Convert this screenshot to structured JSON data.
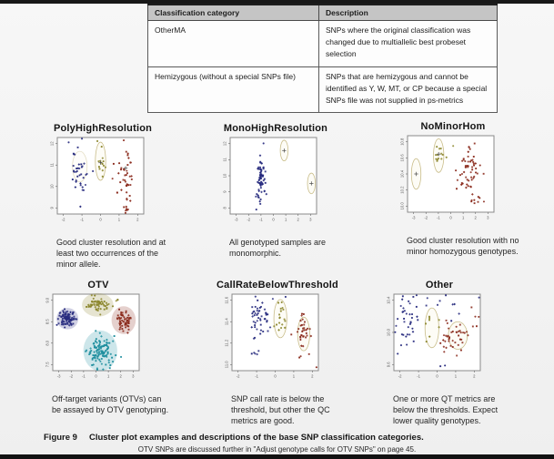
{
  "page": {
    "figure_label": "Figure 9",
    "figure_caption": "Cluster plot examples and descriptions of the base SNP classification categories.",
    "footnote": "OTV SNPs are discussed further in \"Adjust genotype calls for OTV SNPs\" on page 45."
  },
  "table": {
    "headers": [
      "Classification category",
      "Description"
    ],
    "rows": [
      [
        "OtherMA",
        "SNPs where the original classification was changed due to multiallelic best probeset selection"
      ],
      [
        "Hemizygous (without a special SNPs file)",
        "SNPs that are hemizygous and cannot be identified as Y, W, MT, or CP because a special SNPs file was not supplied in ps-metrics"
      ]
    ]
  },
  "colors": {
    "blue": "#272b7e",
    "olive": "#8b862c",
    "red": "#8a2a1c",
    "teal": "#1d8e9e",
    "ellipse": "#c9bd8a",
    "cross": "#4a4a4a",
    "plot_border": "#8a8a8a",
    "tick_text": "#555555"
  },
  "chart_data": [
    {
      "type": "scatter",
      "title": "PolyHighResolution",
      "caption": "Good cluster resolution and at least two occurrences of the minor allele.",
      "x_ticks": [
        "-2",
        "-1",
        "0",
        "1",
        "2"
      ],
      "y_ticks": [
        "12",
        "11",
        "10",
        "9"
      ],
      "clusters": [
        {
          "color": "blue",
          "cx": 0.26,
          "cy": 0.45,
          "sx": 0.055,
          "sy": 0.15,
          "n": 36
        },
        {
          "color": "blue",
          "cx": 0.14,
          "cy": 0.06,
          "sx": 0.01,
          "sy": 0.01,
          "n": 1
        },
        {
          "color": "olive",
          "cx": 0.5,
          "cy": 0.34,
          "sx": 0.028,
          "sy": 0.1,
          "n": 13
        },
        {
          "color": "olive",
          "cx": 0.46,
          "cy": 0.04,
          "sx": 0.008,
          "sy": 0.008,
          "n": 1
        },
        {
          "color": "red",
          "cx": 0.78,
          "cy": 0.52,
          "sx": 0.05,
          "sy": 0.19,
          "n": 46
        },
        {
          "color": "red",
          "cx": 0.8,
          "cy": 0.94,
          "sx": 0.02,
          "sy": 0.015,
          "n": 2
        }
      ],
      "ellipses": [
        {
          "cx": 0.5,
          "cy": 0.31,
          "rx": 0.06,
          "ry": 0.25
        },
        {
          "cx": 0.26,
          "cy": 0.38,
          "rx": 0.085,
          "ry": 0.2,
          "o": 0.5
        }
      ],
      "crosses": [
        {
          "cx": 0.5,
          "cy": 0.33
        },
        {
          "cx": 0.79,
          "cy": 0.4
        }
      ]
    },
    {
      "type": "scatter",
      "title": "MonoHighResolution",
      "caption": "All genotyped samples are monomorphic.",
      "x_ticks": [
        "-3",
        "-2",
        "-1",
        "0",
        "1",
        "2",
        "3"
      ],
      "y_ticks": [
        "12",
        "11",
        "10",
        "9",
        "8"
      ],
      "clusters": [
        {
          "color": "blue",
          "cx": 0.355,
          "cy": 0.55,
          "sx": 0.024,
          "sy": 0.14,
          "n": 72
        },
        {
          "color": "blue",
          "cx": 0.3,
          "cy": 0.945,
          "sx": 0.005,
          "sy": 0.005,
          "n": 1
        }
      ],
      "ellipses": [
        {
          "cx": 0.625,
          "cy": 0.17,
          "rx": 0.045,
          "ry": 0.135
        },
        {
          "cx": 0.94,
          "cy": 0.6,
          "rx": 0.045,
          "ry": 0.135
        }
      ],
      "crosses": [
        {
          "cx": 0.625,
          "cy": 0.17
        },
        {
          "cx": 0.94,
          "cy": 0.6
        }
      ]
    },
    {
      "type": "scatter",
      "title": "NoMinorHom",
      "caption": "Good cluster resolution with no minor homozygous genotypes.",
      "x_ticks": [
        "-3",
        "-2",
        "-1",
        "0",
        "1",
        "2",
        "3"
      ],
      "y_ticks": [
        "10.8",
        "10.6",
        "10.4",
        "10.2",
        "10.0"
      ],
      "clusters": [
        {
          "color": "olive",
          "cx": 0.36,
          "cy": 0.24,
          "sx": 0.03,
          "sy": 0.08,
          "n": 13
        },
        {
          "color": "olive",
          "cx": 0.53,
          "cy": 0.12,
          "sx": 0.008,
          "sy": 0.008,
          "n": 1
        },
        {
          "color": "red",
          "cx": 0.7,
          "cy": 0.47,
          "sx": 0.055,
          "sy": 0.17,
          "n": 56
        },
        {
          "color": "red",
          "cx": 0.76,
          "cy": 0.84,
          "sx": 0.035,
          "sy": 0.02,
          "n": 6
        },
        {
          "color": "red",
          "cx": 0.88,
          "cy": 0.86,
          "sx": 0.006,
          "sy": 0.006,
          "n": 1
        }
      ],
      "ellipses": [
        {
          "cx": 0.1,
          "cy": 0.5,
          "rx": 0.055,
          "ry": 0.2
        },
        {
          "cx": 0.36,
          "cy": 0.26,
          "rx": 0.06,
          "ry": 0.22
        }
      ],
      "crosses": [
        {
          "cx": 0.1,
          "cy": 0.5
        },
        {
          "cx": 0.36,
          "cy": 0.24
        }
      ]
    },
    {
      "type": "scatter",
      "title": "OTV",
      "caption": "Off-target variants (OTVs) can be assayed by OTV genotyping.",
      "x_ticks": [
        "-3",
        "-2",
        "-1",
        "0",
        "1",
        "2",
        "3"
      ],
      "y_ticks": [
        "9.0",
        "8.5",
        "8.0",
        "7.5"
      ],
      "clusters": [
        {
          "color": "blue",
          "cx": 0.17,
          "cy": 0.32,
          "sx": 0.045,
          "sy": 0.05,
          "n": 95,
          "halo": true
        },
        {
          "color": "blue",
          "cx": 0.06,
          "cy": 0.4,
          "sx": 0.01,
          "sy": 0.02,
          "n": 2
        },
        {
          "color": "olive",
          "cx": 0.52,
          "cy": 0.14,
          "sx": 0.065,
          "sy": 0.055,
          "n": 60,
          "halo": true
        },
        {
          "color": "olive",
          "cx": 0.78,
          "cy": 0.07,
          "sx": 0.03,
          "sy": 0.015,
          "n": 3
        },
        {
          "color": "red",
          "cx": 0.82,
          "cy": 0.34,
          "sx": 0.05,
          "sy": 0.065,
          "n": 60,
          "halo": true
        },
        {
          "color": "teal",
          "cx": 0.55,
          "cy": 0.74,
          "sx": 0.07,
          "sy": 0.095,
          "n": 120,
          "halo": true
        }
      ],
      "ellipses": [],
      "crosses": []
    },
    {
      "type": "scatter",
      "title": "CallRateBelowThreshold",
      "caption": "SNP call rate is below the threshold, but other the QC metrics are good.",
      "x_ticks": [
        "-2",
        "-1",
        "0",
        "1",
        "2"
      ],
      "y_ticks": [
        "11.6",
        "11.4",
        "11.2",
        "11.0"
      ],
      "clusters": [
        {
          "color": "blue",
          "cx": 0.3,
          "cy": 0.33,
          "sx": 0.07,
          "sy": 0.11,
          "n": 46
        },
        {
          "color": "blue",
          "cx": 0.27,
          "cy": 0.77,
          "sx": 0.045,
          "sy": 0.025,
          "n": 5
        },
        {
          "color": "blue",
          "cx": 0.35,
          "cy": 0.06,
          "sx": 0.13,
          "sy": 0.025,
          "n": 3
        },
        {
          "color": "olive",
          "cx": 0.56,
          "cy": 0.3,
          "sx": 0.04,
          "sy": 0.09,
          "n": 18
        },
        {
          "color": "red",
          "cx": 0.82,
          "cy": 0.5,
          "sx": 0.045,
          "sy": 0.11,
          "n": 34
        },
        {
          "color": "red",
          "cx": 0.8,
          "cy": 0.8,
          "sx": 0.02,
          "sy": 0.02,
          "n": 2
        },
        {
          "color": "red",
          "cx": 0.97,
          "cy": 0.96,
          "sx": 0.005,
          "sy": 0.005,
          "n": 1
        }
      ],
      "ellipses": [
        {
          "cx": 0.56,
          "cy": 0.32,
          "rx": 0.075,
          "ry": 0.25
        },
        {
          "cx": 0.83,
          "cy": 0.52,
          "rx": 0.07,
          "ry": 0.22
        }
      ],
      "crosses": []
    },
    {
      "type": "scatter",
      "title": "Other",
      "caption": "One or more QT metrics are below the thresholds. Expect lower quality genotypes.",
      "x_ticks": [
        "-2",
        "-1",
        "0",
        "1",
        "2"
      ],
      "y_ticks": [
        "10.4",
        "10.0",
        "9.6"
      ],
      "clusters": [
        {
          "color": "blue",
          "cx": 0.16,
          "cy": 0.35,
          "sx": 0.08,
          "sy": 0.17,
          "n": 36
        },
        {
          "color": "blue",
          "cx": 0.45,
          "cy": 0.15,
          "sx": 0.26,
          "sy": 0.11,
          "n": 12
        },
        {
          "color": "olive",
          "cx": 0.42,
          "cy": 0.45,
          "sx": 0.05,
          "sy": 0.15,
          "n": 8
        },
        {
          "color": "red",
          "cx": 0.7,
          "cy": 0.55,
          "sx": 0.08,
          "sy": 0.1,
          "n": 40
        },
        {
          "color": "red",
          "cx": 0.88,
          "cy": 0.42,
          "sx": 0.06,
          "sy": 0.16,
          "n": 6
        },
        {
          "color": "blue",
          "cx": 0.55,
          "cy": 0.93,
          "sx": 0.02,
          "sy": 0.02,
          "n": 2
        }
      ],
      "ellipses": [
        {
          "cx": 0.44,
          "cy": 0.44,
          "rx": 0.08,
          "ry": 0.26
        },
        {
          "cx": 0.74,
          "cy": 0.54,
          "rx": 0.11,
          "ry": 0.18
        }
      ],
      "crosses": []
    }
  ]
}
